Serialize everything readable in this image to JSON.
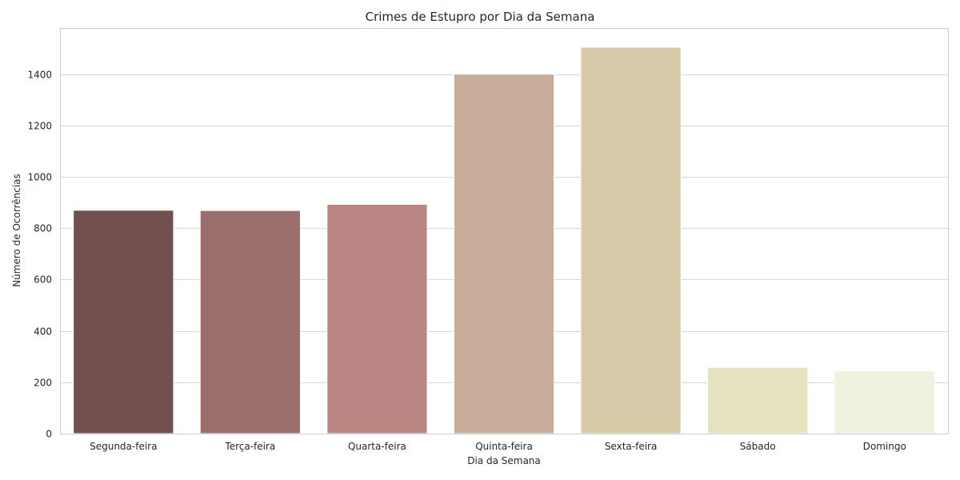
{
  "chart_data": {
    "type": "bar",
    "title": "Crimes de Estupro por Dia da Semana",
    "xlabel": "Dia da Semana",
    "ylabel": "Número de Ocorrências",
    "categories": [
      "Segunda-feira",
      "Terça-feira",
      "Quarta-feira",
      "Quinta-feira",
      "Sexta-feira",
      "Sábado",
      "Domingo"
    ],
    "values": [
      870,
      869,
      893,
      1400,
      1505,
      258,
      244
    ],
    "colors": [
      "#71504f",
      "#9b6f6d",
      "#b98683",
      "#c8ad9b",
      "#d7caa9",
      "#e4e3bd",
      "#f1f1e0"
    ],
    "ylim": [
      0,
      1580
    ],
    "yticks": [
      0,
      200,
      400,
      600,
      800,
      1000,
      1200,
      1400
    ],
    "grid": true,
    "legend": "none"
  }
}
